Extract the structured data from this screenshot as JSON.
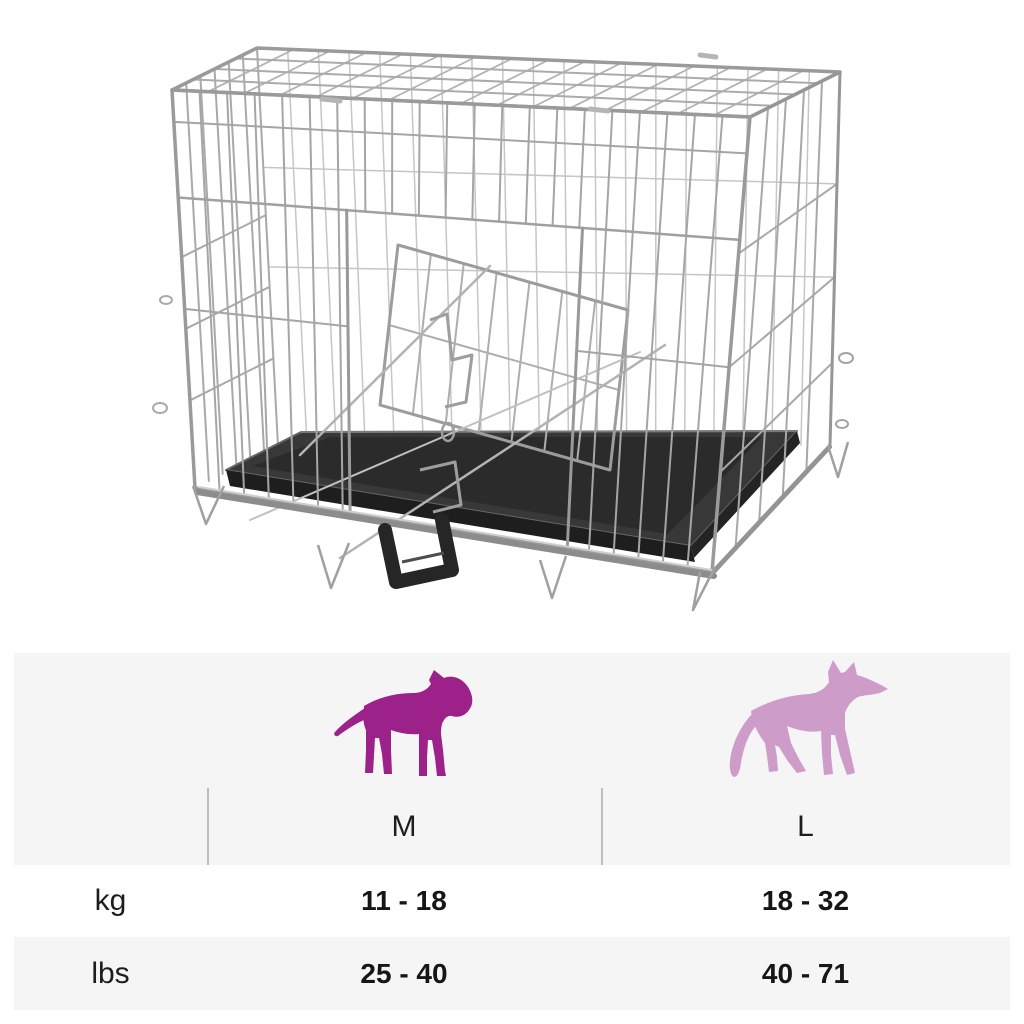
{
  "page": {
    "background": "#ffffff"
  },
  "photo": {
    "subject": "folding-metal-wire-dog-crate-with-black-tray-and-carry-handle"
  },
  "size_chart": {
    "panel_bg": "#f5f5f5",
    "alt_row_bg": "#ffffff",
    "divider_color": "#bdbdbd",
    "text_color": "#1d1d1d",
    "dogs": [
      {
        "icon": "medium-dog-bull-terrier-icon",
        "color": "#9c2189",
        "size": "M"
      },
      {
        "icon": "large-dog-shepherd-icon",
        "color": "#ce9cc9",
        "size": "L"
      }
    ],
    "columns": [
      "M",
      "L"
    ],
    "rows": [
      {
        "label": "kg",
        "values": [
          "11 - 18",
          "18 - 32"
        ]
      },
      {
        "label": "lbs",
        "values": [
          "25 - 40",
          "40 - 71"
        ]
      }
    ]
  },
  "chart_data": {
    "type": "table",
    "columns": [
      "",
      "M",
      "L"
    ],
    "rows": [
      [
        "kg",
        "11 - 18",
        "18 - 32"
      ],
      [
        "lbs",
        "25 - 40",
        "40 - 71"
      ]
    ]
  }
}
